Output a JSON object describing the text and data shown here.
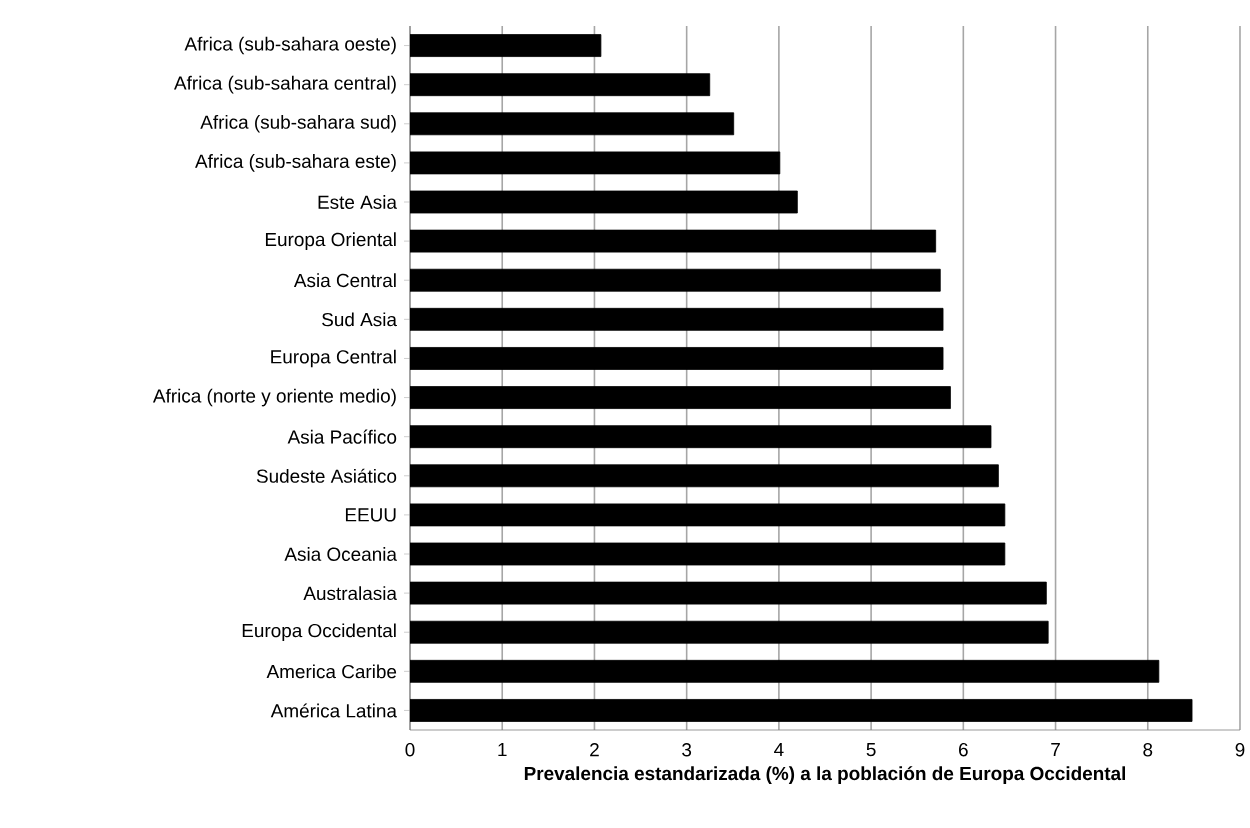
{
  "chart_data": {
    "type": "bar",
    "orientation": "horizontal",
    "xlabel": "Prevalencia estandarizada (%) a  la población de Europa Occidental",
    "categories": [
      "Africa (sub-sahara oeste)",
      "Africa (sub-sahara central)",
      "Africa (sub-sahara sud)",
      "Africa (sub-sahara este)",
      "Este Asia",
      "Europa Oriental",
      "Asia Central",
      "Sud Asia",
      "Europa Central",
      "Africa (norte y oriente medio)",
      "Asia Pacífico",
      "Sudeste Asiático",
      "EEUU",
      "Asia Oceania",
      "Australasia",
      "Europa Occidental",
      "America Caribe",
      "América Latina"
    ],
    "values": [
      2.07,
      3.25,
      3.51,
      4.01,
      4.2,
      5.7,
      5.75,
      5.78,
      5.78,
      5.86,
      6.3,
      6.38,
      6.45,
      6.45,
      6.9,
      6.92,
      8.12,
      8.48
    ],
    "color": "#000000",
    "xlim": [
      0,
      9
    ],
    "xticks": [
      0,
      1,
      2,
      3,
      4,
      5,
      6,
      7,
      8,
      9
    ],
    "grid": "x"
  }
}
